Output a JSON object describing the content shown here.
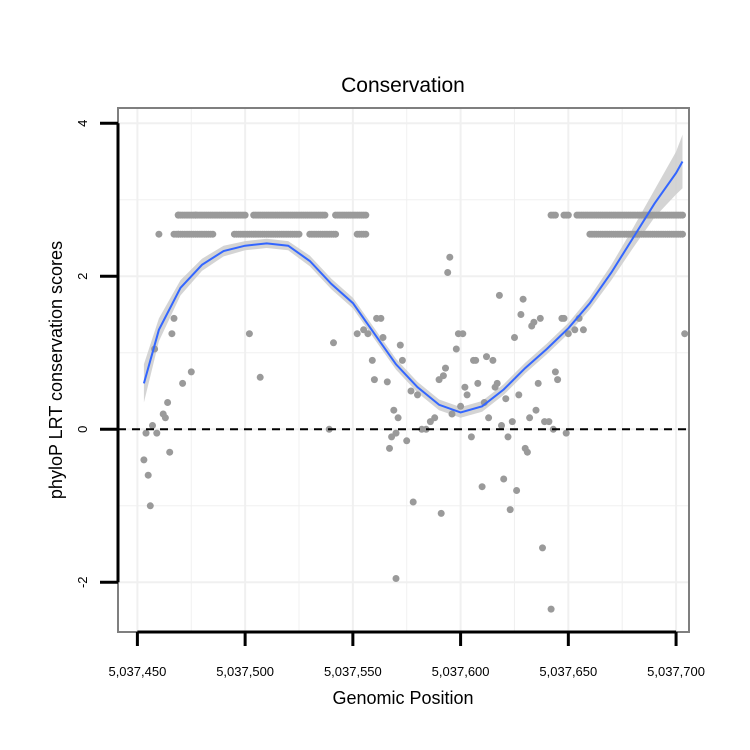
{
  "chart_data": {
    "type": "scatter",
    "title": "Conservation",
    "xlabel": "Genomic Position",
    "ylabel": "phyloP LRT conservation scores",
    "xlim": [
      5037441,
      5037706
    ],
    "ylim": [
      -2.65,
      4.2
    ],
    "x_ticks": [
      5037450,
      5037500,
      5037550,
      5037600,
      5037650,
      5037700
    ],
    "x_tick_labels": [
      "5,037,450",
      "5,037,500",
      "5,037,550",
      "5,037,600",
      "5,037,650",
      "5,037,700"
    ],
    "y_ticks": [
      -2,
      0,
      2,
      4
    ],
    "y_tick_labels": [
      "-2",
      "0",
      "2",
      "4"
    ],
    "reference_line": {
      "y": 0,
      "style": "dashed"
    },
    "colors": {
      "points": "#9a9a9a",
      "smooth": "#3366ff",
      "ribbon": "#cccccc",
      "frame": "#7f7f7f",
      "grid": "#f0f0f0"
    },
    "series": [
      {
        "name": "points",
        "type": "scatter",
        "points": [
          [
            5037453,
            -0.4
          ],
          [
            5037454,
            -0.05
          ],
          [
            5037455,
            -0.6
          ],
          [
            5037456,
            -1.0
          ],
          [
            5037457,
            0.05
          ],
          [
            5037459,
            -0.05
          ],
          [
            5037458,
            1.05
          ],
          [
            5037460,
            2.55
          ],
          [
            5037462,
            0.2
          ],
          [
            5037463,
            0.15
          ],
          [
            5037464,
            0.35
          ],
          [
            5037465,
            -0.3
          ],
          [
            5037466,
            1.25
          ],
          [
            5037467,
            1.45
          ],
          [
            5037469,
            2.8
          ],
          [
            5037469,
            2.55
          ],
          [
            5037471,
            0.6
          ],
          [
            5037475,
            0.75
          ],
          [
            5037502,
            1.25
          ],
          [
            5037507,
            0.68
          ],
          [
            5037539,
            0.0
          ],
          [
            5037541,
            1.13
          ],
          [
            5037552,
            1.25
          ],
          [
            5037555,
            1.3
          ],
          [
            5037557,
            1.25
          ],
          [
            5037559,
            0.9
          ],
          [
            5037560,
            0.65
          ],
          [
            5037561,
            1.45
          ],
          [
            5037563,
            1.45
          ],
          [
            5037564,
            1.2
          ],
          [
            5037566,
            0.62
          ],
          [
            5037567,
            -0.25
          ],
          [
            5037568,
            -0.1
          ],
          [
            5037569,
            0.25
          ],
          [
            5037570,
            -0.05
          ],
          [
            5037570,
            -1.95
          ],
          [
            5037571,
            0.15
          ],
          [
            5037572,
            1.1
          ],
          [
            5037573,
            0.9
          ],
          [
            5037575,
            -0.15
          ],
          [
            5037577,
            0.5
          ],
          [
            5037578,
            -0.95
          ],
          [
            5037580,
            0.45
          ],
          [
            5037582,
            0.0
          ],
          [
            5037584,
            0.0
          ],
          [
            5037586,
            0.1
          ],
          [
            5037588,
            0.15
          ],
          [
            5037590,
            0.65
          ],
          [
            5037591,
            -1.1
          ],
          [
            5037592,
            0.7
          ],
          [
            5037593,
            0.8
          ],
          [
            5037594,
            2.05
          ],
          [
            5037595,
            2.25
          ],
          [
            5037596,
            0.2
          ],
          [
            5037598,
            1.05
          ],
          [
            5037599,
            1.25
          ],
          [
            5037600,
            0.3
          ],
          [
            5037601,
            1.25
          ],
          [
            5037602,
            0.55
          ],
          [
            5037603,
            0.45
          ],
          [
            5037605,
            -0.1
          ],
          [
            5037606,
            0.9
          ],
          [
            5037607,
            0.9
          ],
          [
            5037608,
            0.6
          ],
          [
            5037610,
            -0.75
          ],
          [
            5037611,
            0.35
          ],
          [
            5037612,
            0.95
          ],
          [
            5037613,
            0.15
          ],
          [
            5037615,
            0.9
          ],
          [
            5037616,
            0.55
          ],
          [
            5037617,
            0.6
          ],
          [
            5037618,
            1.75
          ],
          [
            5037619,
            0.05
          ],
          [
            5037620,
            -0.65
          ],
          [
            5037621,
            0.4
          ],
          [
            5037622,
            -0.1
          ],
          [
            5037623,
            -1.05
          ],
          [
            5037624,
            0.1
          ],
          [
            5037625,
            1.2
          ],
          [
            5037626,
            -0.8
          ],
          [
            5037627,
            0.45
          ],
          [
            5037628,
            1.5
          ],
          [
            5037629,
            1.7
          ],
          [
            5037630,
            -0.25
          ],
          [
            5037631,
            -0.3
          ],
          [
            5037632,
            0.15
          ],
          [
            5037633,
            1.35
          ],
          [
            5037634,
            1.4
          ],
          [
            5037635,
            0.25
          ],
          [
            5037636,
            0.6
          ],
          [
            5037637,
            1.45
          ],
          [
            5037638,
            -1.55
          ],
          [
            5037639,
            0.1
          ],
          [
            5037641,
            0.1
          ],
          [
            5037642,
            -2.35
          ],
          [
            5037643,
            0.0
          ],
          [
            5037644,
            0.75
          ],
          [
            5037645,
            0.65
          ],
          [
            5037647,
            1.45
          ],
          [
            5037648,
            1.45
          ],
          [
            5037649,
            -0.05
          ],
          [
            5037650,
            1.25
          ],
          [
            5037653,
            1.3
          ],
          [
            5037655,
            1.45
          ],
          [
            5037657,
            1.3
          ],
          [
            5037704,
            1.25
          ]
        ]
      },
      {
        "name": "upper band",
        "type": "scatter",
        "y": 2.8,
        "x_ranges": [
          [
            5037469,
            5037477
          ],
          [
            5037477,
            5037500
          ],
          [
            5037504,
            5037537
          ],
          [
            5037542,
            5037556
          ],
          [
            5037642,
            5037644
          ],
          [
            5037648,
            5037650
          ],
          [
            5037654,
            5037703
          ]
        ]
      },
      {
        "name": "lower band",
        "type": "scatter",
        "y": 2.55,
        "x_ranges": [
          [
            5037467,
            5037485
          ],
          [
            5037495,
            5037525
          ],
          [
            5037530,
            5037542
          ],
          [
            5037552,
            5037556
          ],
          [
            5037660,
            5037703
          ]
        ]
      },
      {
        "name": "smooth",
        "type": "line",
        "x": [
          5037453,
          5037460,
          5037470,
          5037480,
          5037490,
          5037500,
          5037510,
          5037520,
          5037530,
          5037540,
          5037550,
          5037560,
          5037570,
          5037580,
          5037590,
          5037600,
          5037610,
          5037620,
          5037630,
          5037640,
          5037650,
          5037660,
          5037670,
          5037680,
          5037690,
          5037700,
          5037703
        ],
        "values": [
          0.6,
          1.3,
          1.85,
          2.15,
          2.33,
          2.4,
          2.43,
          2.4,
          2.2,
          1.9,
          1.65,
          1.25,
          0.85,
          0.55,
          0.32,
          0.22,
          0.3,
          0.52,
          0.8,
          1.05,
          1.32,
          1.65,
          2.05,
          2.5,
          2.95,
          3.35,
          3.5
        ],
        "ribbon_halfwidth": [
          0.25,
          0.15,
          0.1,
          0.08,
          0.07,
          0.06,
          0.06,
          0.06,
          0.07,
          0.07,
          0.07,
          0.07,
          0.07,
          0.07,
          0.07,
          0.07,
          0.07,
          0.07,
          0.07,
          0.07,
          0.07,
          0.08,
          0.1,
          0.13,
          0.18,
          0.28,
          0.35
        ]
      }
    ]
  }
}
